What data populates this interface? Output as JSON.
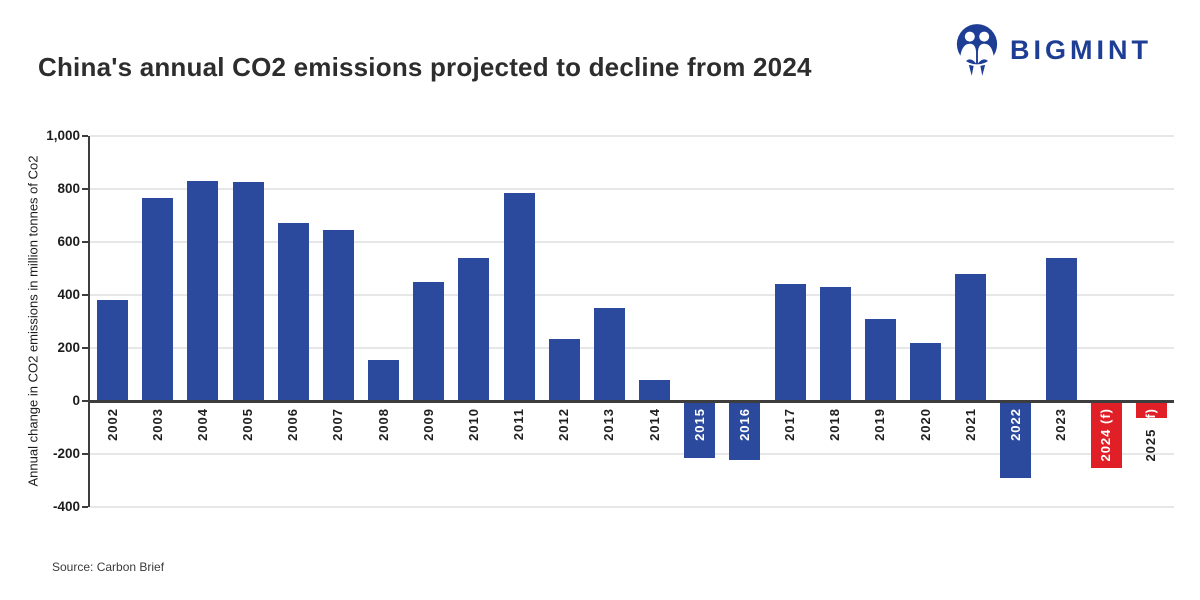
{
  "header": {
    "brand": "BIGMINT"
  },
  "footer": {
    "source": "Source: Carbon Brief"
  },
  "colors": {
    "bar_blue": "#2b4a9d",
    "bar_red": "#e11f26",
    "brand_navy": "#1e3e96",
    "grid": "#e7e7e7",
    "axis": "#3d3d3d",
    "text_dark": "#1f1f1f",
    "label_white": "#ffffff"
  },
  "chart_data": {
    "type": "bar",
    "title": "China's annual CO2 emissions projected to decline from 2024",
    "xlabel": "",
    "ylabel": "Annual change in CO2 emissions in million tonnes of Co2",
    "ylim": [
      -400,
      1000
    ],
    "grid": "horizontal",
    "legend": "none",
    "x_tick_rotation": 90,
    "yticks": [
      {
        "value": 1000,
        "label": "1,000"
      },
      {
        "value": 800,
        "label": "800"
      },
      {
        "value": 600,
        "label": "600"
      },
      {
        "value": 400,
        "label": "400"
      },
      {
        "value": 200,
        "label": "200"
      },
      {
        "value": 0,
        "label": "0"
      },
      {
        "value": -200,
        "label": "-200"
      },
      {
        "value": -400,
        "label": "-400"
      }
    ],
    "bars": [
      {
        "category": "2002",
        "value": 380,
        "color": "blue",
        "label_color": "dark"
      },
      {
        "category": "2003",
        "value": 765,
        "color": "blue",
        "label_color": "dark"
      },
      {
        "category": "2004",
        "value": 830,
        "color": "blue",
        "label_color": "dark"
      },
      {
        "category": "2005",
        "value": 825,
        "color": "blue",
        "label_color": "dark"
      },
      {
        "category": "2006",
        "value": 670,
        "color": "blue",
        "label_color": "dark"
      },
      {
        "category": "2007",
        "value": 645,
        "color": "blue",
        "label_color": "dark"
      },
      {
        "category": "2008",
        "value": 155,
        "color": "blue",
        "label_color": "dark"
      },
      {
        "category": "2009",
        "value": 450,
        "color": "blue",
        "label_color": "dark"
      },
      {
        "category": "2010",
        "value": 540,
        "color": "blue",
        "label_color": "dark"
      },
      {
        "category": "2011",
        "value": 785,
        "color": "blue",
        "label_color": "dark"
      },
      {
        "category": "2012",
        "value": 235,
        "color": "blue",
        "label_color": "dark"
      },
      {
        "category": "2013",
        "value": 350,
        "color": "blue",
        "label_color": "dark"
      },
      {
        "category": "2014",
        "value": 80,
        "color": "blue",
        "label_color": "dark"
      },
      {
        "category": "2015",
        "value": -210,
        "color": "blue",
        "label_color": "white"
      },
      {
        "category": "2016",
        "value": -220,
        "color": "blue",
        "label_color": "white"
      },
      {
        "category": "2017",
        "value": 440,
        "color": "blue",
        "label_color": "dark"
      },
      {
        "category": "2018",
        "value": 430,
        "color": "blue",
        "label_color": "dark"
      },
      {
        "category": "2019",
        "value": 310,
        "color": "blue",
        "label_color": "dark"
      },
      {
        "category": "2020",
        "value": 220,
        "color": "blue",
        "label_color": "dark"
      },
      {
        "category": "2021",
        "value": 480,
        "color": "blue",
        "label_color": "dark"
      },
      {
        "category": "2022",
        "value": -285,
        "color": "blue",
        "label_color": "white"
      },
      {
        "category": "2023",
        "value": 540,
        "color": "blue",
        "label_color": "dark"
      },
      {
        "category": "2024 (f)",
        "value": -250,
        "color": "red",
        "label_color": "white"
      },
      {
        "category": "2025 (f)",
        "value": -60,
        "color": "red",
        "label_color": "split",
        "label_dark_part": "2025 ",
        "label_white_part": "(f)"
      }
    ]
  }
}
